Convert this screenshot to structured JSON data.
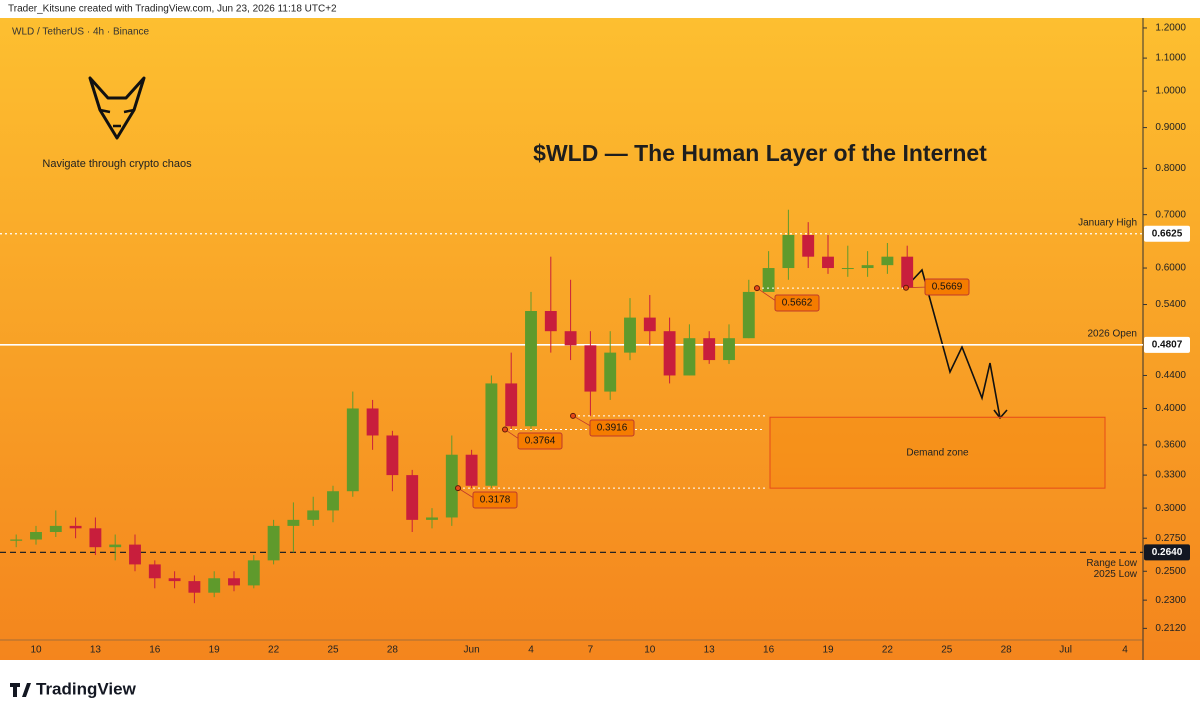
{
  "chart_data": {
    "type": "candlestick",
    "header": "Trader_Kitsune created with TradingView.com, Jun 23, 2026 11:18 UTC+2",
    "symbol": "WLD / TetherUS · 4h · Binance",
    "tagline": "Navigate through crypto chaos",
    "title": "$WLD — The Human Layer of the Internet",
    "brand": "TradingView",
    "log_scale": true,
    "up_color": "#5f9a2c",
    "down_color": "#c81e3c",
    "categories": [
      null,
      "10",
      null,
      null,
      "13",
      null,
      null,
      "16",
      null,
      null,
      "19",
      null,
      null,
      "22",
      null,
      null,
      "25",
      null,
      null,
      "28",
      null,
      null,
      null,
      "Jun",
      null,
      null,
      "4",
      null,
      null,
      "7",
      null,
      null,
      "10",
      null,
      null,
      "13",
      null,
      null,
      "16",
      null,
      null,
      "19",
      null,
      null,
      "22",
      null,
      null,
      "25",
      null,
      null,
      "28",
      null,
      null,
      "Jul",
      null,
      null,
      "4"
    ],
    "open": [
      0.273,
      0.274,
      0.28,
      0.285,
      0.283,
      0.268,
      0.27,
      0.255,
      0.245,
      0.243,
      0.235,
      0.245,
      0.24,
      0.258,
      0.285,
      0.29,
      0.298,
      0.315,
      0.4,
      0.37,
      0.33,
      0.29,
      0.292,
      0.35,
      0.32,
      0.43,
      0.38,
      0.53,
      0.5,
      0.48,
      0.42,
      0.47,
      0.52,
      0.5,
      0.44,
      0.49,
      0.46,
      0.49,
      0.56,
      0.6,
      0.66,
      0.62,
      0.6,
      0.6,
      0.605,
      0.62,
      null,
      null,
      null,
      null,
      null,
      null,
      null,
      null,
      null,
      null,
      null
    ],
    "high": [
      0.278,
      0.285,
      0.298,
      0.292,
      0.292,
      0.278,
      0.278,
      0.258,
      0.25,
      0.247,
      0.25,
      0.25,
      0.262,
      0.29,
      0.305,
      0.31,
      0.32,
      0.42,
      0.41,
      0.375,
      0.335,
      0.3,
      0.37,
      0.355,
      0.44,
      0.47,
      0.56,
      0.62,
      0.58,
      0.5,
      0.5,
      0.55,
      0.555,
      0.52,
      0.51,
      0.5,
      0.51,
      0.58,
      0.63,
      0.71,
      0.685,
      0.66,
      0.64,
      0.63,
      0.645,
      0.64,
      null,
      null,
      null,
      null,
      null,
      null,
      null,
      null,
      null,
      null,
      null
    ],
    "low": [
      0.268,
      0.27,
      0.276,
      0.275,
      0.262,
      0.258,
      0.25,
      0.238,
      0.238,
      0.228,
      0.232,
      0.236,
      0.238,
      0.255,
      0.264,
      0.285,
      0.288,
      0.31,
      0.355,
      0.315,
      0.28,
      0.283,
      0.285,
      0.3178,
      0.318,
      0.3764,
      0.375,
      0.47,
      0.46,
      0.3916,
      0.41,
      0.46,
      0.48,
      0.43,
      0.44,
      0.455,
      0.455,
      0.49,
      0.5662,
      0.58,
      0.6,
      0.59,
      0.585,
      0.585,
      0.59,
      0.5669,
      null,
      null,
      null,
      null,
      null,
      null,
      null,
      null,
      null,
      null,
      null
    ],
    "close": [
      0.274,
      0.28,
      0.285,
      0.283,
      0.268,
      0.27,
      0.255,
      0.245,
      0.243,
      0.235,
      0.245,
      0.24,
      0.258,
      0.285,
      0.29,
      0.298,
      0.315,
      0.4,
      0.37,
      0.33,
      0.29,
      0.292,
      0.35,
      0.32,
      0.43,
      0.38,
      0.53,
      0.5,
      0.48,
      0.42,
      0.47,
      0.52,
      0.5,
      0.44,
      0.49,
      0.46,
      0.49,
      0.56,
      0.6,
      0.66,
      0.62,
      0.6,
      0.6,
      0.605,
      0.62,
      0.5669,
      null,
      null,
      null,
      null,
      null,
      null,
      null,
      null,
      null,
      null,
      null
    ],
    "ylim": [
      0.205,
      1.235
    ],
    "yticks": [
      {
        "value": 1.2,
        "label": "1.2000"
      },
      {
        "value": 1.1,
        "label": "1.1000"
      },
      {
        "value": 1.0,
        "label": "1.0000"
      },
      {
        "value": 0.9,
        "label": "0.9000"
      },
      {
        "value": 0.8,
        "label": "0.8000"
      },
      {
        "value": 0.7,
        "label": "0.7000"
      },
      {
        "value": 0.6,
        "label": "0.6000"
      },
      {
        "value": 0.54,
        "label": "0.5400"
      },
      {
        "value": 0.44,
        "label": "0.4400"
      },
      {
        "value": 0.4,
        "label": "0.4000"
      },
      {
        "value": 0.36,
        "label": "0.3600"
      },
      {
        "value": 0.33,
        "label": "0.3300"
      },
      {
        "value": 0.3,
        "label": "0.3000"
      },
      {
        "value": 0.275,
        "label": "0.2750"
      },
      {
        "value": 0.25,
        "label": "0.2500"
      },
      {
        "value": 0.23,
        "label": "0.2300"
      },
      {
        "value": 0.212,
        "label": "0.2120"
      }
    ],
    "levels": [
      {
        "value": 0.6625,
        "price_label": "0.6625",
        "label": [
          "January High"
        ],
        "style": "dotted"
      },
      {
        "value": 0.4807,
        "price_label": "0.4807",
        "label": [
          "2026 Open"
        ],
        "style": "solid"
      },
      {
        "value": 0.264,
        "price_label": "0.2640",
        "label": [
          "Range Low",
          "2025 Low"
        ],
        "style": "dashed"
      }
    ],
    "markers": [
      {
        "value": 0.5662,
        "label": "0.5662"
      },
      {
        "value": 0.5669,
        "label": "0.5669"
      },
      {
        "value": 0.3764,
        "label": "0.3764"
      },
      {
        "value": 0.3916,
        "label": "0.3916"
      },
      {
        "value": 0.3178,
        "label": "0.3178"
      }
    ],
    "zone": {
      "label": "Demand zone",
      "range": [
        0.3178,
        0.39
      ]
    }
  }
}
